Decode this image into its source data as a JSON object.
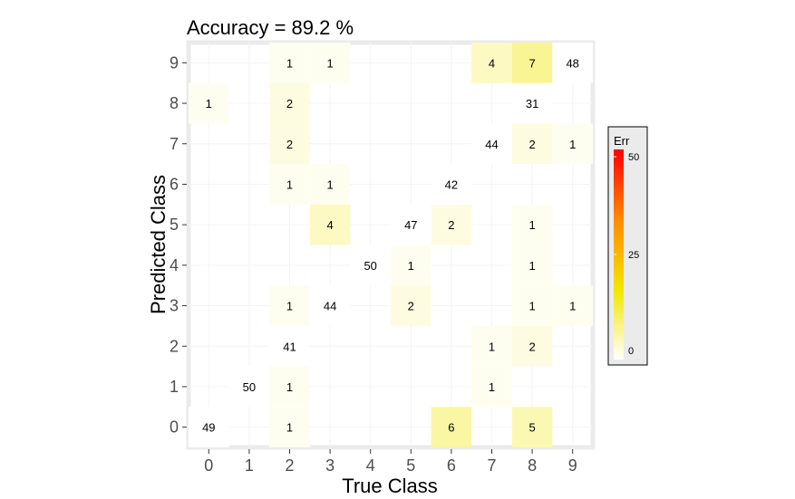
{
  "chart_data": {
    "type": "heatmap",
    "title": "Accuracy =  89.2 %",
    "xlabel": "True Class",
    "ylabel": "Predicted Class",
    "x_categories": [
      "0",
      "1",
      "2",
      "3",
      "4",
      "5",
      "6",
      "7",
      "8",
      "9"
    ],
    "y_categories": [
      "0",
      "1",
      "2",
      "3",
      "4",
      "5",
      "6",
      "7",
      "8",
      "9"
    ],
    "cells": [
      {
        "true": 0,
        "pred": 0,
        "count": 49
      },
      {
        "true": 0,
        "pred": 8,
        "count": 1
      },
      {
        "true": 1,
        "pred": 1,
        "count": 50
      },
      {
        "true": 2,
        "pred": 0,
        "count": 1
      },
      {
        "true": 2,
        "pred": 1,
        "count": 1
      },
      {
        "true": 2,
        "pred": 2,
        "count": 41
      },
      {
        "true": 2,
        "pred": 3,
        "count": 1
      },
      {
        "true": 2,
        "pred": 6,
        "count": 1
      },
      {
        "true": 2,
        "pred": 7,
        "count": 2
      },
      {
        "true": 2,
        "pred": 8,
        "count": 2
      },
      {
        "true": 2,
        "pred": 9,
        "count": 1
      },
      {
        "true": 3,
        "pred": 3,
        "count": 44
      },
      {
        "true": 3,
        "pred": 5,
        "count": 4
      },
      {
        "true": 3,
        "pred": 6,
        "count": 1
      },
      {
        "true": 3,
        "pred": 9,
        "count": 1
      },
      {
        "true": 4,
        "pred": 4,
        "count": 50
      },
      {
        "true": 5,
        "pred": 3,
        "count": 2
      },
      {
        "true": 5,
        "pred": 4,
        "count": 1
      },
      {
        "true": 5,
        "pred": 5,
        "count": 47
      },
      {
        "true": 6,
        "pred": 0,
        "count": 6
      },
      {
        "true": 6,
        "pred": 5,
        "count": 2
      },
      {
        "true": 6,
        "pred": 6,
        "count": 42
      },
      {
        "true": 7,
        "pred": 1,
        "count": 1
      },
      {
        "true": 7,
        "pred": 2,
        "count": 1
      },
      {
        "true": 7,
        "pred": 7,
        "count": 44
      },
      {
        "true": 7,
        "pred": 9,
        "count": 4
      },
      {
        "true": 8,
        "pred": 0,
        "count": 5
      },
      {
        "true": 8,
        "pred": 2,
        "count": 2
      },
      {
        "true": 8,
        "pred": 3,
        "count": 1
      },
      {
        "true": 8,
        "pred": 4,
        "count": 1
      },
      {
        "true": 8,
        "pred": 5,
        "count": 1
      },
      {
        "true": 8,
        "pred": 7,
        "count": 2
      },
      {
        "true": 8,
        "pred": 8,
        "count": 31
      },
      {
        "true": 8,
        "pred": 9,
        "count": 7
      },
      {
        "true": 9,
        "pred": 3,
        "count": 1
      },
      {
        "true": 9,
        "pred": 7,
        "count": 1
      },
      {
        "true": 9,
        "pred": 9,
        "count": 48
      }
    ],
    "fill_rule": "diagonal cells uncolored; off-diagonal cells colored by error count",
    "legend": {
      "title": "Err",
      "ticks": [
        0,
        25,
        50
      ],
      "range": [
        0,
        50
      ],
      "colors": [
        "#ffffff",
        "#f2e600",
        "#ff8a00",
        "#ff0000"
      ],
      "placement": "right"
    },
    "grid": true,
    "panel_background": "#ffffff",
    "panel_border": "#ebebeb"
  }
}
